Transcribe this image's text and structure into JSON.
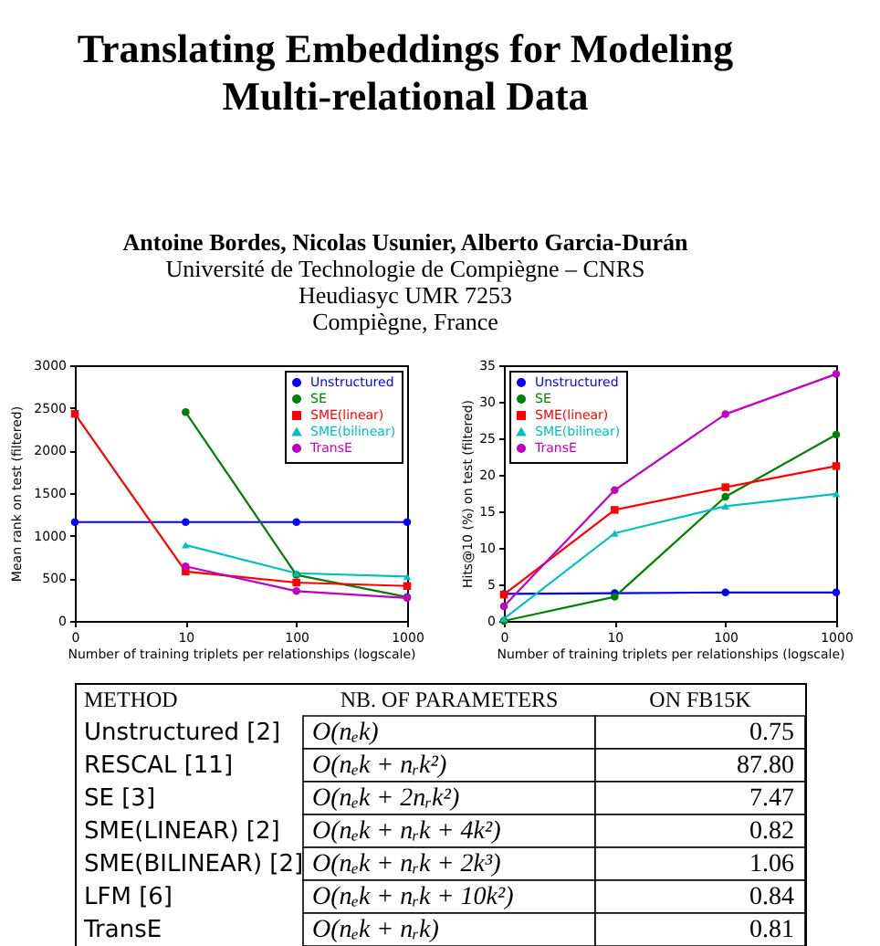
{
  "chart_data": [
    {
      "type": "other",
      "title": "Translating Embeddings for Modeling\nMulti-relational Data",
      "annotations": [
        "Antoine Bordes, Nicolas Usunier, Alberto Garcia-Durán",
        "Université de Technologie de Compiègne – CNRS",
        "Heudiasyc UMR 7253",
        "Compiègne, France"
      ]
    },
    {
      "type": "line",
      "categories": [
        "0",
        "10",
        "100",
        "1000"
      ],
      "xlabel": "Number of training triplets per relationships (logscale)",
      "ylabel": "Mean rank on test (filtered)",
      "ylim": [
        0,
        3000
      ],
      "yticks": [
        0,
        500,
        1000,
        1500,
        2000,
        2500,
        3000
      ],
      "legend": "top right",
      "series": [
        {
          "name": "Unstructured",
          "color": "#0000ff",
          "marker": "circle",
          "values": [
            1160,
            1160,
            1160,
            1160
          ]
        },
        {
          "name": "SE",
          "color": "#008000",
          "marker": "circle",
          "values": [
            null,
            2450,
            540,
            280
          ]
        },
        {
          "name": "SME(linear)",
          "color": "#ff0000",
          "marker": "square",
          "values": [
            2430,
            580,
            450,
            410
          ]
        },
        {
          "name": "SME(bilinear)",
          "color": "#00bfbf",
          "marker": "triangle",
          "values": [
            null,
            890,
            560,
            520
          ]
        },
        {
          "name": "TransE",
          "color": "#bf00bf",
          "marker": "circle",
          "values": [
            null,
            640,
            350,
            270
          ]
        }
      ]
    },
    {
      "type": "line",
      "categories": [
        "0",
        "10",
        "100",
        "1000"
      ],
      "xlabel": "Number of training triplets per relationships (logscale)",
      "ylabel": "Hits@10 (%) on test (filtered)",
      "ylim": [
        0,
        35
      ],
      "yticks": [
        0,
        5,
        10,
        15,
        20,
        25,
        30,
        35
      ],
      "legend": "top left",
      "series": [
        {
          "name": "Unstructured",
          "color": "#0000ff",
          "marker": "circle",
          "values": [
            3.7,
            3.8,
            3.9,
            3.9
          ]
        },
        {
          "name": "SE",
          "color": "#008000",
          "marker": "circle",
          "values": [
            0.0,
            3.3,
            17.0,
            25.5
          ]
        },
        {
          "name": "SME(linear)",
          "color": "#ff0000",
          "marker": "square",
          "values": [
            3.6,
            15.2,
            18.3,
            21.2
          ]
        },
        {
          "name": "SME(bilinear)",
          "color": "#00bfbf",
          "marker": "triangle",
          "values": [
            0.3,
            12.0,
            15.7,
            17.4
          ]
        },
        {
          "name": "TransE",
          "color": "#bf00bf",
          "marker": "circle",
          "values": [
            2.0,
            17.9,
            28.3,
            33.8
          ]
        }
      ]
    },
    {
      "type": "heatmap",
      "ylabel": "METHOD",
      "categories": [
        "NB. OF PARAMETERS",
        "ON FB15K"
      ],
      "y_categories": [
        "Unstructured [2]",
        "RESCAL [11]",
        "SE [3]",
        "SME(LINEAR) [2]",
        "SME(BILINEAR) [2]",
        "LFM [6]",
        "TransE"
      ],
      "cells": [
        [
          null,
          null
        ],
        [
          null,
          null
        ],
        [
          null,
          null
        ],
        [
          null,
          null
        ],
        [
          null,
          null
        ],
        [
          null,
          null
        ],
        [
          null,
          null
        ]
      ],
      "cell_labels": [
        [
          "O(nₑk)",
          "0.75"
        ],
        [
          "O(nₑk + nᵣk²)",
          "87.80"
        ],
        [
          "O(nₑk + 2nᵣk²)",
          "7.47"
        ],
        [
          "O(nₑk + nᵣk + 4k²)",
          "0.82"
        ],
        [
          "O(nₑk + nᵣk + 2k³)",
          "1.06"
        ],
        [
          "O(nₑk + nᵣk + 10k²)",
          "0.84"
        ],
        [
          "O(nₑk + nᵣk)",
          "0.81"
        ]
      ]
    }
  ]
}
